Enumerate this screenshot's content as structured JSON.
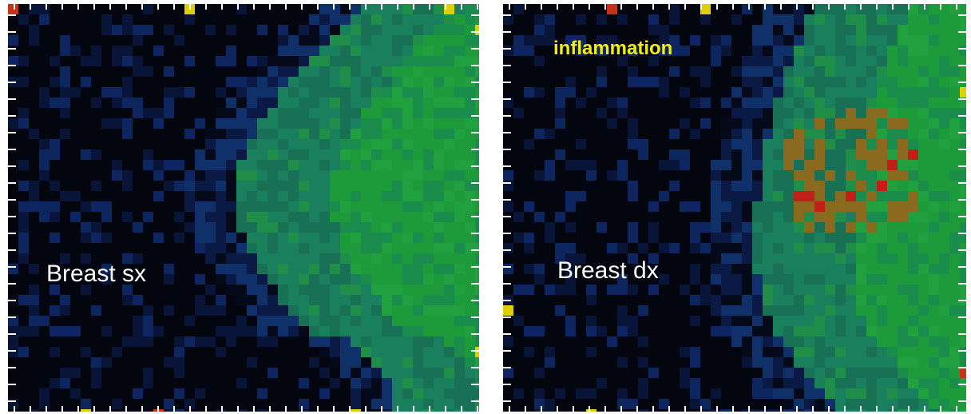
{
  "panels": [
    {
      "label": "Breast sx"
    },
    {
      "label": "Breast dx",
      "annotation": "inflammation"
    }
  ]
}
